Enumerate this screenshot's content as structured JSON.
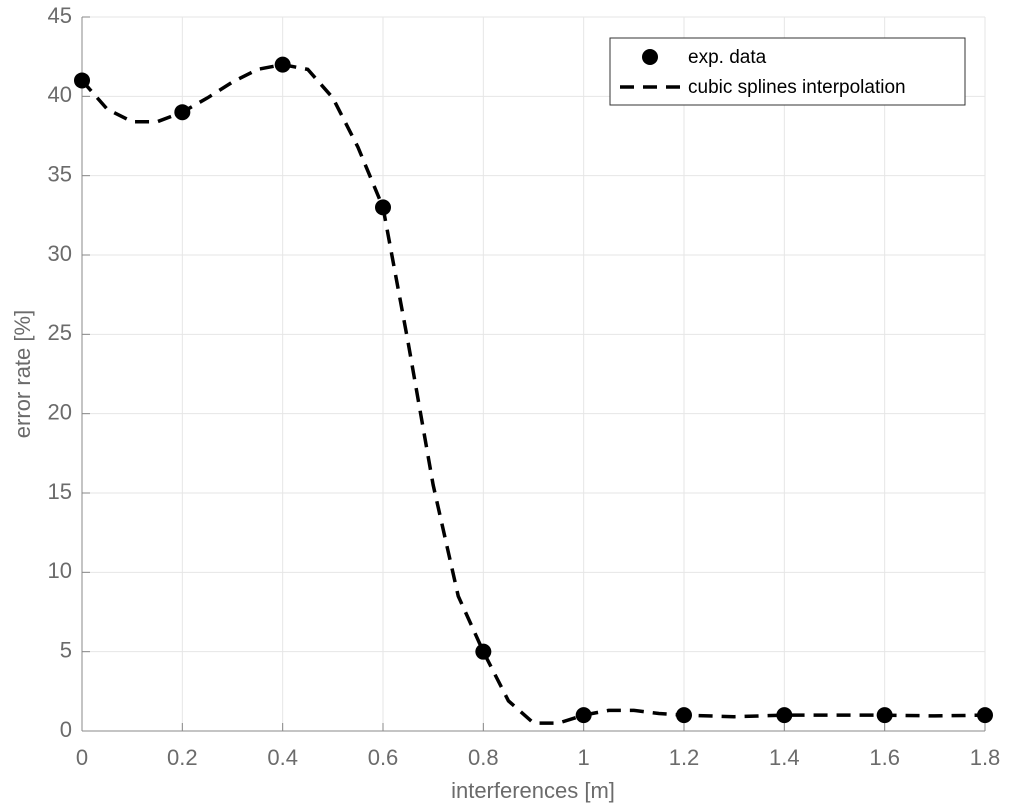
{
  "chart_data": {
    "type": "line",
    "xlabel": "interferences [m]",
    "ylabel": "error rate [%]",
    "xlim": [
      0,
      1.8
    ],
    "xticks": [
      0,
      0.2,
      0.4,
      0.6,
      0.8,
      1,
      1.2,
      1.4,
      1.6,
      1.8
    ],
    "ylim": [
      0,
      45
    ],
    "yticks": [
      0,
      5,
      10,
      15,
      20,
      25,
      30,
      35,
      40,
      45
    ],
    "grid": true,
    "legend": "upper right",
    "series": [
      {
        "name": "exp. data",
        "color": "#000000",
        "style": "markers",
        "x": [
          0,
          0.2,
          0.4,
          0.6,
          0.8,
          1,
          1.2,
          1.4,
          1.6,
          1.8
        ],
        "values": [
          41,
          39,
          42,
          33,
          5,
          1,
          1,
          1,
          1,
          1
        ]
      },
      {
        "name": "cubic splines interpolation",
        "color": "#000000",
        "style": "dashed",
        "x": [
          0,
          0.05,
          0.1,
          0.15,
          0.2,
          0.25,
          0.3,
          0.35,
          0.4,
          0.45,
          0.5,
          0.55,
          0.6,
          0.65,
          0.7,
          0.75,
          0.8,
          0.85,
          0.9,
          0.95,
          1,
          1.05,
          1.1,
          1.15,
          1.2,
          1.3,
          1.4,
          1.5,
          1.6,
          1.7,
          1.8
        ],
        "values": [
          41,
          39.2,
          38.4,
          38.4,
          39,
          39.9,
          40.9,
          41.7,
          42,
          41.7,
          39.9,
          36.8,
          33,
          24.5,
          15.5,
          8.5,
          5,
          1.9,
          0.5,
          0.5,
          1,
          1.3,
          1.3,
          1.1,
          1,
          0.9,
          1,
          1,
          1,
          0.95,
          1
        ]
      }
    ]
  }
}
